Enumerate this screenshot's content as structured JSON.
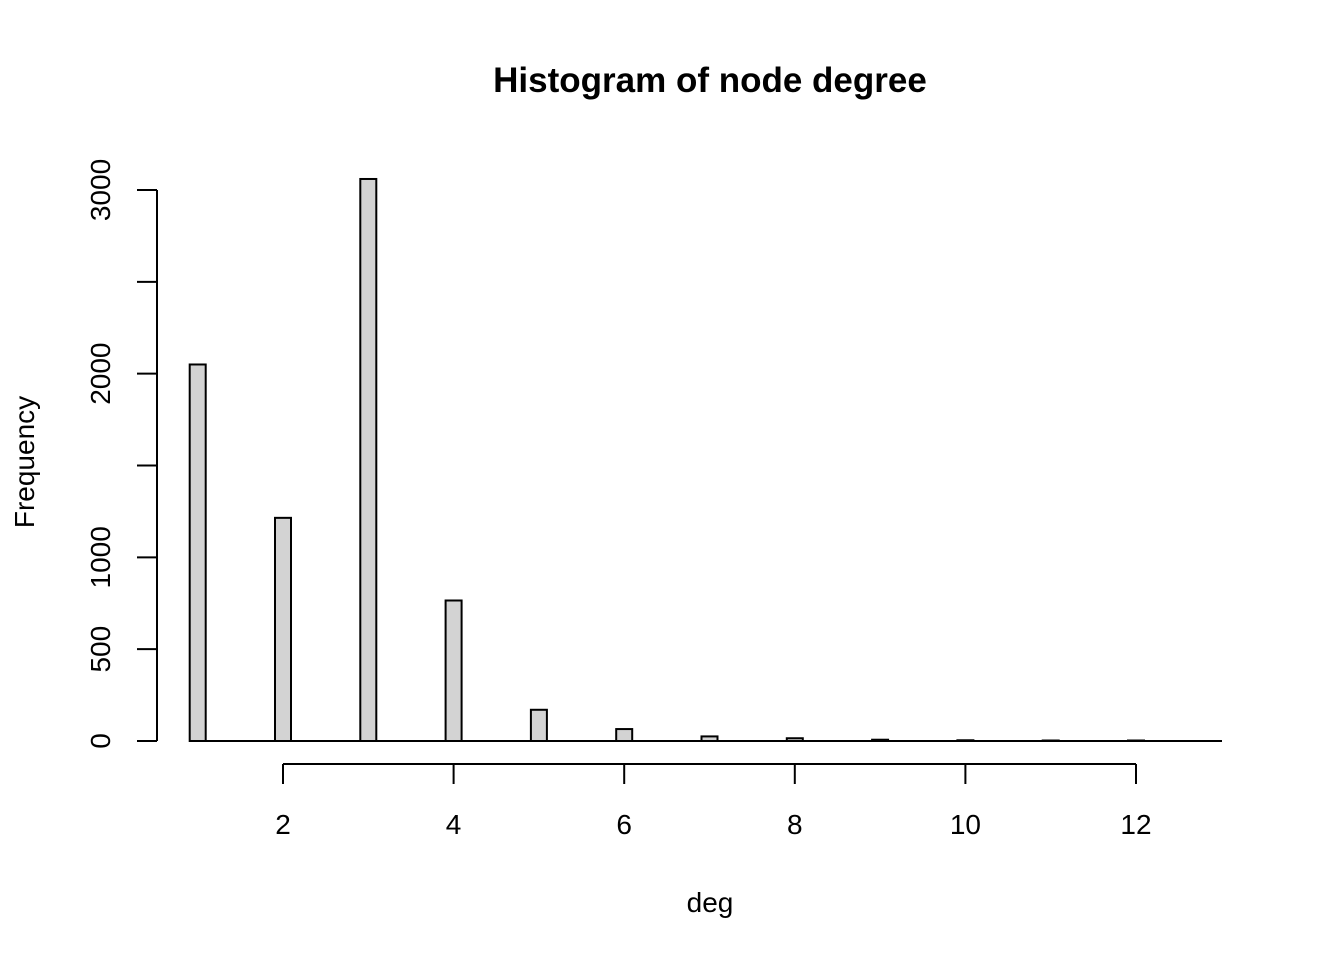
{
  "chart_data": {
    "type": "bar",
    "title": "Histogram of node degree",
    "xlabel": "deg",
    "ylabel": "Frequency",
    "x_ticks": [
      2,
      4,
      6,
      8,
      10,
      12
    ],
    "x_tick_labels": [
      "2",
      "4",
      "6",
      "8",
      "10",
      "12"
    ],
    "y_ticks": [
      0,
      500,
      1000,
      1500,
      2000,
      2500,
      3000
    ],
    "y_tick_labels": [
      "0",
      "500",
      "1000",
      "",
      "2000",
      "",
      "3000"
    ],
    "xlim": [
      0.5,
      13
    ],
    "ylim": [
      0,
      3000
    ],
    "bins": [
      {
        "x": 1,
        "value": 2050
      },
      {
        "x": 2,
        "value": 1215
      },
      {
        "x": 3,
        "value": 3060
      },
      {
        "x": 4,
        "value": 765
      },
      {
        "x": 5,
        "value": 170
      },
      {
        "x": 6,
        "value": 65
      },
      {
        "x": 7,
        "value": 25
      },
      {
        "x": 8,
        "value": 15
      },
      {
        "x": 9,
        "value": 7
      },
      {
        "x": 10,
        "value": 4
      },
      {
        "x": 11,
        "value": 2
      },
      {
        "x": 12,
        "value": 1
      }
    ],
    "bar_fill": "#d3d3d3",
    "bar_stroke": "#000000",
    "grid": false,
    "legend": "none"
  }
}
